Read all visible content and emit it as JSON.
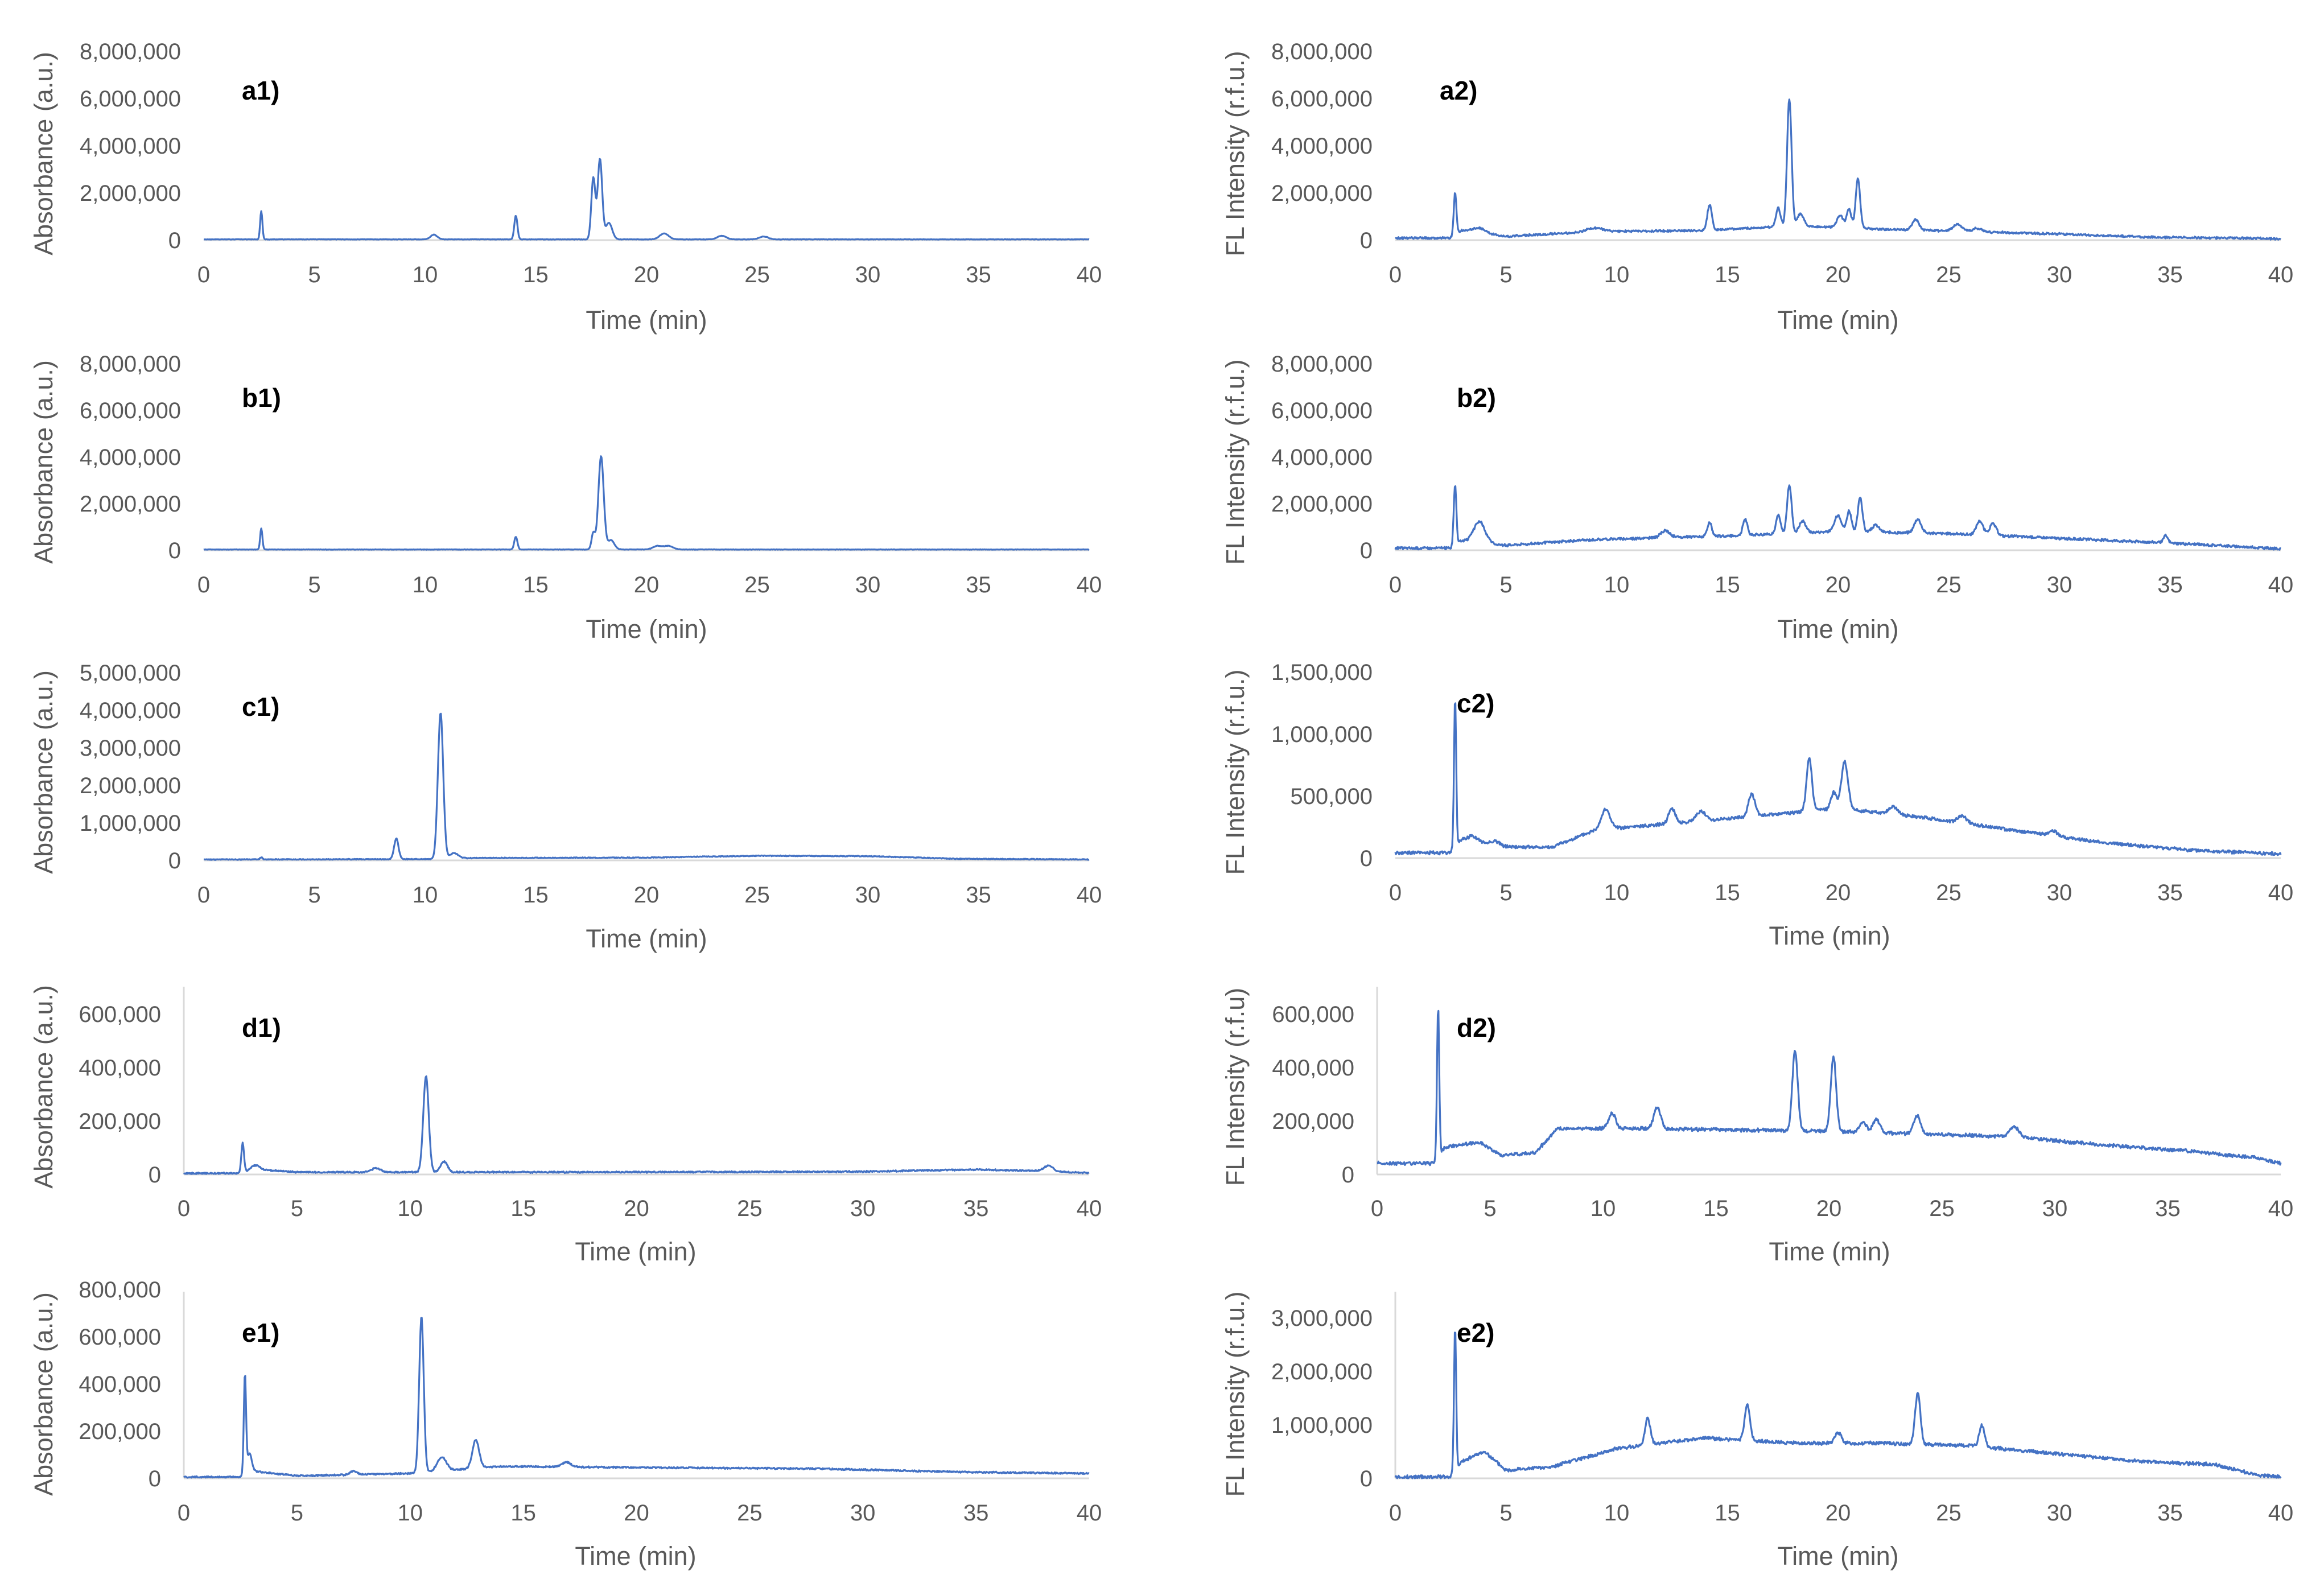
{
  "colors": {
    "trace": "#4472C4",
    "axis": "#D9D9D9",
    "text": "#595959"
  },
  "chart_data": [
    {
      "type": "line",
      "label": "a1)",
      "xlabel": "Time (min)",
      "ylabel": "Absorbance (a.u.)",
      "xlim": [
        0,
        40
      ],
      "ylim": [
        0,
        8000000
      ],
      "xticks": [
        0,
        5,
        10,
        15,
        20,
        25,
        30,
        35,
        40
      ],
      "yticks": [
        0,
        2000000,
        4000000,
        6000000,
        8000000
      ],
      "ytick_labels": [
        "0",
        "2,000,000",
        "4,000,000",
        "6,000,000",
        "8,000,000"
      ],
      "xtick_labels": [
        "0",
        "5",
        "10",
        "15",
        "20",
        "25",
        "30",
        "35",
        "40"
      ],
      "baseline": [
        [
          0,
          30000
        ],
        [
          40,
          30000
        ]
      ],
      "noise": 8000,
      "peaks": [
        [
          2.6,
          1200000,
          0.05
        ],
        [
          10.4,
          200000,
          0.15
        ],
        [
          14.1,
          1000000,
          0.07
        ],
        [
          17.6,
          2600000,
          0.09
        ],
        [
          17.9,
          3400000,
          0.1
        ],
        [
          18.3,
          700000,
          0.15
        ],
        [
          20.8,
          250000,
          0.2
        ],
        [
          23.4,
          150000,
          0.2
        ],
        [
          25.3,
          120000,
          0.2
        ]
      ]
    },
    {
      "type": "line",
      "label": "a2)",
      "xlabel": "Time (min)",
      "ylabel": "FL Intensity (r.f.u.)",
      "xlim": [
        0,
        40
      ],
      "ylim": [
        0,
        8000000
      ],
      "xticks": [
        0,
        5,
        10,
        15,
        20,
        25,
        30,
        35,
        40
      ],
      "yticks": [
        0,
        2000000,
        4000000,
        6000000,
        8000000
      ],
      "ytick_labels": [
        "0",
        "2,000,000",
        "4,000,000",
        "6,000,000",
        "8,000,000"
      ],
      "xtick_labels": [
        "0",
        "5",
        "10",
        "15",
        "20",
        "25",
        "30",
        "35",
        "40"
      ],
      "baseline": [
        [
          0,
          80000
        ],
        [
          2.5,
          80000
        ],
        [
          3,
          400000
        ],
        [
          5,
          150000
        ],
        [
          9,
          350000
        ],
        [
          14,
          400000
        ],
        [
          18,
          600000
        ],
        [
          22,
          450000
        ],
        [
          26,
          350000
        ],
        [
          30,
          250000
        ],
        [
          34,
          120000
        ],
        [
          40,
          50000
        ]
      ],
      "noise": 40000,
      "peaks": [
        [
          2.7,
          1800000,
          0.06
        ],
        [
          3.8,
          200000,
          0.3
        ],
        [
          9,
          150000,
          0.4
        ],
        [
          14.2,
          1100000,
          0.1
        ],
        [
          17.3,
          800000,
          0.1
        ],
        [
          17.8,
          5400000,
          0.1
        ],
        [
          18.3,
          500000,
          0.15
        ],
        [
          20.1,
          500000,
          0.15
        ],
        [
          20.5,
          800000,
          0.1
        ],
        [
          20.9,
          2100000,
          0.1
        ],
        [
          23.5,
          450000,
          0.15
        ],
        [
          25.4,
          300000,
          0.2
        ],
        [
          26.3,
          150000,
          0.2
        ]
      ]
    },
    {
      "type": "line",
      "label": "b1)",
      "xlabel": "Time (min)",
      "ylabel": "Absorbance (a.u.)",
      "xlim": [
        0,
        40
      ],
      "ylim": [
        0,
        8000000
      ],
      "xticks": [
        0,
        5,
        10,
        15,
        20,
        25,
        30,
        35,
        40
      ],
      "yticks": [
        0,
        2000000,
        4000000,
        6000000,
        8000000
      ],
      "ytick_labels": [
        "0",
        "2,000,000",
        "4,000,000",
        "6,000,000",
        "8,000,000"
      ],
      "xtick_labels": [
        "0",
        "5",
        "10",
        "15",
        "20",
        "25",
        "30",
        "35",
        "40"
      ],
      "baseline": [
        [
          0,
          30000
        ],
        [
          40,
          30000
        ]
      ],
      "noise": 8000,
      "peaks": [
        [
          2.6,
          900000,
          0.05
        ],
        [
          14.1,
          550000,
          0.07
        ],
        [
          17.6,
          700000,
          0.08
        ],
        [
          17.95,
          4000000,
          0.12
        ],
        [
          18.4,
          400000,
          0.15
        ],
        [
          20.5,
          150000,
          0.2
        ],
        [
          21,
          150000,
          0.2
        ]
      ]
    },
    {
      "type": "line",
      "label": "b2)",
      "xlabel": "Time (min)",
      "ylabel": "FL Intensity (r.f.u.)",
      "xlim": [
        0,
        40
      ],
      "ylim": [
        0,
        8000000
      ],
      "xticks": [
        0,
        5,
        10,
        15,
        20,
        25,
        30,
        35,
        40
      ],
      "yticks": [
        0,
        2000000,
        4000000,
        6000000,
        8000000
      ],
      "ytick_labels": [
        "0",
        "2,000,000",
        "4,000,000",
        "6,000,000",
        "8,000,000"
      ],
      "xtick_labels": [
        "0",
        "5",
        "10",
        "15",
        "20",
        "25",
        "30",
        "35",
        "40"
      ],
      "baseline": [
        [
          0,
          80000
        ],
        [
          2.5,
          80000
        ],
        [
          3,
          400000
        ],
        [
          5,
          200000
        ],
        [
          9,
          450000
        ],
        [
          15,
          600000
        ],
        [
          20,
          800000
        ],
        [
          25,
          700000
        ],
        [
          30,
          500000
        ],
        [
          35,
          300000
        ],
        [
          40,
          50000
        ]
      ],
      "noise": 50000,
      "peaks": [
        [
          2.7,
          2600000,
          0.06
        ],
        [
          3.8,
          900000,
          0.25
        ],
        [
          12.2,
          300000,
          0.2
        ],
        [
          14.2,
          600000,
          0.1
        ],
        [
          15.8,
          700000,
          0.1
        ],
        [
          17.3,
          800000,
          0.1
        ],
        [
          17.8,
          2100000,
          0.1
        ],
        [
          18.4,
          500000,
          0.15
        ],
        [
          20,
          700000,
          0.15
        ],
        [
          20.5,
          900000,
          0.1
        ],
        [
          21,
          1500000,
          0.1
        ],
        [
          21.7,
          300000,
          0.15
        ],
        [
          23.6,
          600000,
          0.15
        ],
        [
          26.4,
          600000,
          0.15
        ],
        [
          27,
          500000,
          0.15
        ],
        [
          34.8,
          300000,
          0.1
        ]
      ]
    },
    {
      "type": "line",
      "label": "c1)",
      "xlabel": "Time (min)",
      "ylabel": "Absorbance (a.u.)",
      "xlim": [
        0,
        40
      ],
      "ylim": [
        0,
        5000000
      ],
      "xticks": [
        0,
        5,
        10,
        15,
        20,
        25,
        30,
        35,
        40
      ],
      "yticks": [
        0,
        1000000,
        2000000,
        3000000,
        4000000,
        5000000
      ],
      "ytick_labels": [
        "0",
        "1,000,000",
        "2,000,000",
        "3,000,000",
        "4,000,000",
        "5,000,000"
      ],
      "xtick_labels": [
        "0",
        "5",
        "10",
        "15",
        "20",
        "25",
        "30",
        "35",
        "40"
      ],
      "baseline": [
        [
          0,
          20000
        ],
        [
          11,
          30000
        ],
        [
          12,
          60000
        ],
        [
          20,
          70000
        ],
        [
          25,
          120000
        ],
        [
          30,
          110000
        ],
        [
          34,
          40000
        ],
        [
          40,
          20000
        ]
      ],
      "noise": 10000,
      "peaks": [
        [
          2.6,
          60000,
          0.05
        ],
        [
          8.7,
          550000,
          0.1
        ],
        [
          10.7,
          3900000,
          0.12
        ],
        [
          11.3,
          150000,
          0.2
        ]
      ]
    },
    {
      "type": "line",
      "label": "c2)",
      "xlabel": "Time (min)",
      "ylabel": "FL Intensity (r.f.u.)",
      "xlim": [
        0,
        40
      ],
      "ylim": [
        0,
        1500000
      ],
      "xticks": [
        0,
        5,
        10,
        15,
        20,
        25,
        30,
        35,
        40
      ],
      "yticks": [
        0,
        500000,
        1000000,
        1500000
      ],
      "ytick_labels": [
        "0",
        "500,000",
        "1,000,000",
        "1,500,000"
      ],
      "xtick_labels": [
        "0",
        "5",
        "10",
        "15",
        "20",
        "25",
        "30",
        "35",
        "40"
      ],
      "baseline": [
        [
          0,
          40000
        ],
        [
          2.5,
          40000
        ],
        [
          3,
          150000
        ],
        [
          5,
          90000
        ],
        [
          7,
          80000
        ],
        [
          9,
          220000
        ],
        [
          12,
          270000
        ],
        [
          16,
          330000
        ],
        [
          20,
          400000
        ],
        [
          24,
          320000
        ],
        [
          28,
          220000
        ],
        [
          32,
          120000
        ],
        [
          36,
          60000
        ],
        [
          40,
          30000
        ]
      ],
      "noise": 12000,
      "peaks": [
        [
          2.7,
          1200000,
          0.05
        ],
        [
          3.5,
          40000,
          0.2
        ],
        [
          4.5,
          30000,
          0.2
        ],
        [
          9.5,
          160000,
          0.2
        ],
        [
          12.5,
          120000,
          0.15
        ],
        [
          13.8,
          80000,
          0.2
        ],
        [
          16.1,
          180000,
          0.15
        ],
        [
          18.7,
          430000,
          0.12
        ],
        [
          19.8,
          130000,
          0.12
        ],
        [
          20.3,
          380000,
          0.15
        ],
        [
          22.5,
          60000,
          0.2
        ],
        [
          25.6,
          60000,
          0.2
        ],
        [
          29.7,
          40000,
          0.2
        ]
      ]
    },
    {
      "type": "line",
      "label": "d1)",
      "xlabel": "Time (min)",
      "ylabel": "Absorbance (a.u.)",
      "xlim": [
        0,
        40
      ],
      "ylim": [
        0,
        700000
      ],
      "xticks": [
        0,
        5,
        10,
        15,
        20,
        25,
        30,
        35,
        40
      ],
      "yticks": [
        0,
        200000,
        400000,
        600000
      ],
      "ytick_labels": [
        "0",
        "200,000",
        "400,000",
        "600,000"
      ],
      "xtick_labels": [
        "0",
        "5",
        "10",
        "15",
        "20",
        "25",
        "30",
        "35",
        "40"
      ],
      "baseline": [
        [
          0,
          4000
        ],
        [
          2.5,
          4000
        ],
        [
          3,
          20000
        ],
        [
          5,
          8000
        ],
        [
          20,
          8000
        ],
        [
          30,
          10000
        ],
        [
          35,
          18000
        ],
        [
          38,
          12000
        ],
        [
          40,
          5000
        ]
      ],
      "noise": 2500,
      "peaks": [
        [
          2.6,
          110000,
          0.06
        ],
        [
          3.2,
          15000,
          0.15
        ],
        [
          8.5,
          15000,
          0.2
        ],
        [
          10.7,
          360000,
          0.12
        ],
        [
          11.5,
          40000,
          0.15
        ],
        [
          38.2,
          20000,
          0.2
        ]
      ]
    },
    {
      "type": "line",
      "label": "d2)",
      "xlabel": "Time (min)",
      "ylabel": "FL Intensity (r.f.u)",
      "xlim": [
        0,
        40
      ],
      "ylim": [
        0,
        700000
      ],
      "xticks": [
        0,
        5,
        10,
        15,
        20,
        25,
        30,
        35,
        40
      ],
      "yticks": [
        0,
        200000,
        400000,
        600000
      ],
      "ytick_labels": [
        "0",
        "200,000",
        "400,000",
        "600,000"
      ],
      "xtick_labels": [
        "0",
        "5",
        "10",
        "15",
        "20",
        "25",
        "30",
        "35",
        "40"
      ],
      "baseline": [
        [
          0,
          40000
        ],
        [
          2.5,
          40000
        ],
        [
          3,
          100000
        ],
        [
          4.5,
          120000
        ],
        [
          5.5,
          70000
        ],
        [
          7,
          80000
        ],
        [
          8,
          170000
        ],
        [
          12,
          170000
        ],
        [
          16,
          165000
        ],
        [
          20,
          160000
        ],
        [
          24,
          150000
        ],
        [
          28,
          140000
        ],
        [
          32,
          110000
        ],
        [
          36,
          85000
        ],
        [
          39,
          60000
        ],
        [
          40,
          40000
        ]
      ],
      "noise": 6000,
      "peaks": [
        [
          2.7,
          560000,
          0.05
        ],
        [
          10.4,
          60000,
          0.15
        ],
        [
          12.4,
          80000,
          0.15
        ],
        [
          18.5,
          300000,
          0.12
        ],
        [
          20.2,
          280000,
          0.12
        ],
        [
          21.5,
          40000,
          0.15
        ],
        [
          22.1,
          50000,
          0.15
        ],
        [
          23.9,
          70000,
          0.15
        ],
        [
          28.2,
          40000,
          0.2
        ]
      ]
    },
    {
      "type": "line",
      "label": "e1)",
      "xlabel": "Time (min)",
      "ylabel": "Absorbance (a.u.)",
      "xlim": [
        0,
        40
      ],
      "ylim": [
        0,
        800000
      ],
      "xticks": [
        0,
        5,
        10,
        15,
        20,
        25,
        30,
        35,
        40
      ],
      "yticks": [
        0,
        200000,
        400000,
        600000,
        800000
      ],
      "ytick_labels": [
        "0",
        "200,000",
        "400,000",
        "600,000",
        "800,000"
      ],
      "xtick_labels": [
        "0",
        "5",
        "10",
        "15",
        "20",
        "25",
        "30",
        "35",
        "40"
      ],
      "baseline": [
        [
          0,
          5000
        ],
        [
          2.5,
          5000
        ],
        [
          3,
          30000
        ],
        [
          5,
          10000
        ],
        [
          10,
          20000
        ],
        [
          14,
          50000
        ],
        [
          20,
          45000
        ],
        [
          28,
          40000
        ],
        [
          35,
          25000
        ],
        [
          40,
          20000
        ]
      ],
      "noise": 3000,
      "peaks": [
        [
          2.7,
          420000,
          0.05
        ],
        [
          2.9,
          80000,
          0.1
        ],
        [
          7.5,
          15000,
          0.15
        ],
        [
          10.5,
          660000,
          0.1
        ],
        [
          11.4,
          60000,
          0.2
        ],
        [
          12.9,
          120000,
          0.15
        ],
        [
          16.9,
          20000,
          0.2
        ]
      ]
    },
    {
      "type": "line",
      "label": "e2)",
      "xlabel": "Time (min)",
      "ylabel": "FL Intensity (r.f.u.)",
      "xlim": [
        0,
        40
      ],
      "ylim": [
        0,
        3500000
      ],
      "xticks": [
        0,
        5,
        10,
        15,
        20,
        25,
        30,
        35,
        40
      ],
      "yticks": [
        0,
        1000000,
        2000000,
        3000000
      ],
      "ytick_labels": [
        "0",
        "1,000,000",
        "2,000,000",
        "3,000,000"
      ],
      "xtick_labels": [
        "0",
        "5",
        "10",
        "15",
        "20",
        "25",
        "30",
        "35",
        "40"
      ],
      "baseline": [
        [
          0,
          20000
        ],
        [
          2.5,
          20000
        ],
        [
          3,
          300000
        ],
        [
          4,
          500000
        ],
        [
          5,
          150000
        ],
        [
          7,
          200000
        ],
        [
          10,
          550000
        ],
        [
          14,
          750000
        ],
        [
          18,
          650000
        ],
        [
          22,
          650000
        ],
        [
          26,
          600000
        ],
        [
          30,
          450000
        ],
        [
          34,
          300000
        ],
        [
          37,
          250000
        ],
        [
          39,
          50000
        ],
        [
          40,
          20000
        ]
      ],
      "noise": 30000,
      "peaks": [
        [
          2.7,
          2700000,
          0.05
        ],
        [
          11.4,
          500000,
          0.12
        ],
        [
          15.9,
          650000,
          0.12
        ],
        [
          20,
          200000,
          0.15
        ],
        [
          23.6,
          950000,
          0.12
        ],
        [
          26.5,
          400000,
          0.12
        ]
      ]
    }
  ]
}
